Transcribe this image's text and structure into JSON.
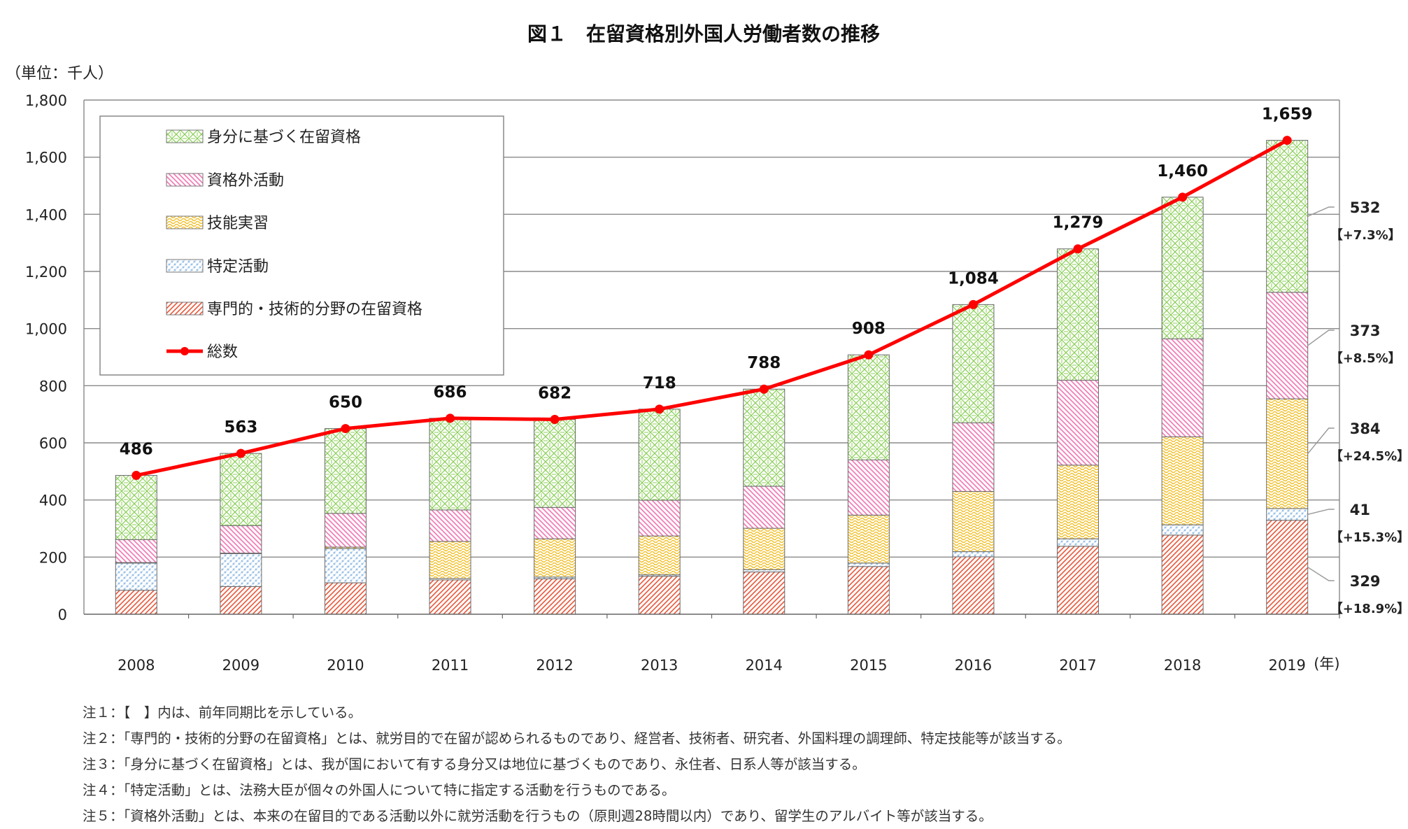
{
  "chart_data": {
    "type": "bar",
    "stacked": true,
    "title": "図１　在留資格別外国人労働者数の推移",
    "unit_label": "（単位：千人）",
    "x_suffix": "(年)",
    "categories": [
      "2008",
      "2009",
      "2010",
      "2011",
      "2012",
      "2013",
      "2014",
      "2015",
      "2016",
      "2017",
      "2018",
      "2019"
    ],
    "ylim": [
      0,
      1800
    ],
    "yticks": [
      0,
      200,
      400,
      600,
      800,
      1000,
      1200,
      1400,
      1600,
      1800
    ],
    "ytick_labels": [
      "0",
      "200",
      "400",
      "600",
      "800",
      "1,000",
      "1,200",
      "1,400",
      "1,600",
      "1,800"
    ],
    "grid": true,
    "legend_position": "top-left",
    "series": [
      {
        "name": "専門的・技術的分野の在留資格",
        "color": "#e8573a",
        "pattern": "diag",
        "values": [
          84,
          97,
          110,
          120,
          124,
          133,
          148,
          167,
          201,
          238,
          277,
          329
        ]
      },
      {
        "name": "特定活動",
        "color": "#7fb0e0",
        "pattern": "dots",
        "values": [
          95,
          115,
          120,
          5,
          6,
          5,
          8,
          12,
          18,
          26,
          36,
          41
        ]
      },
      {
        "name": "技能実習",
        "color": "#f2c12e",
        "pattern": "wave",
        "values": [
          2,
          2,
          5,
          130,
          134,
          136,
          145,
          168,
          211,
          258,
          308,
          384
        ]
      },
      {
        "name": "資格外活動",
        "color": "#f27fb8",
        "pattern": "diag2",
        "values": [
          80,
          96,
          118,
          110,
          110,
          125,
          147,
          193,
          240,
          297,
          343,
          373
        ]
      },
      {
        "name": "身分に基づく在留資格",
        "color": "#8ccf5a",
        "pattern": "cross",
        "values": [
          225,
          253,
          297,
          321,
          308,
          319,
          340,
          368,
          414,
          460,
          496,
          532
        ]
      }
    ],
    "total": {
      "name": "総数",
      "color": "#ff0000",
      "values": [
        486,
        563,
        650,
        686,
        682,
        718,
        788,
        908,
        1084,
        1279,
        1460,
        1659
      ],
      "labels": [
        "486",
        "563",
        "650",
        "686",
        "682",
        "718",
        "788",
        "908",
        "1,084",
        "1,279",
        "1,460",
        "1,659"
      ]
    },
    "annotations_2019": [
      {
        "value": "532",
        "change": "【+7.3%】"
      },
      {
        "value": "373",
        "change": "【+8.5%】"
      },
      {
        "value": "384",
        "change": "【+24.5%】"
      },
      {
        "value": "41",
        "change": "【+15.3%】"
      },
      {
        "value": "329",
        "change": "【+18.9%】"
      }
    ]
  },
  "notes": [
    "注１：【　】内は、前年同期比を示している。",
    "注２：「専門的・技術的分野の在留資格」とは、就労目的で在留が認められるものであり、経営者、技術者、研究者、外国料理の調理師、特定技能等が該当する。",
    "注３：「身分に基づく在留資格」とは、我が国において有する身分又は地位に基づくものであり、永住者、日系人等が該当する。",
    "注４：「特定活動」とは、法務大臣が個々の外国人について特に指定する活動を行うものである。",
    "注５：「資格外活動」とは、本来の在留目的である活動以外に就労活動を行うもの（原則週28時間以内）であり、留学生のアルバイト等が該当する。"
  ]
}
